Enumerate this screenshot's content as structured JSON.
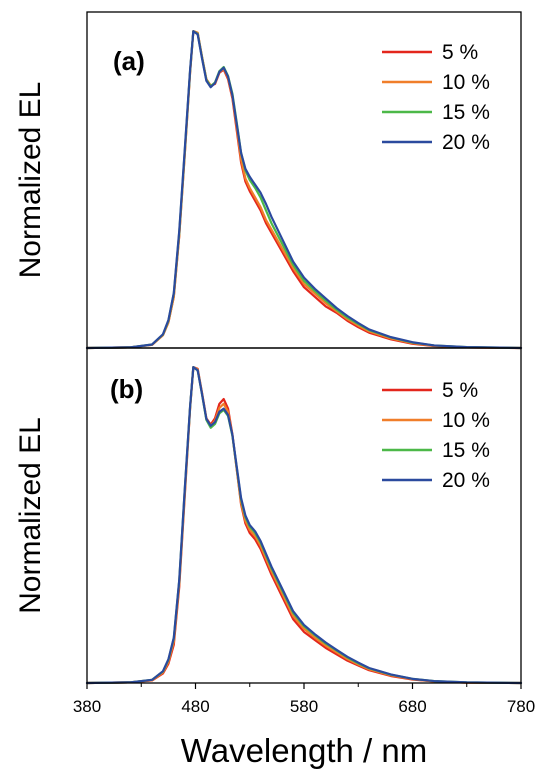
{
  "chart_data": [
    {
      "type": "line",
      "panel_label": "(a)",
      "ylabel": "Normalized EL",
      "xlabel": "",
      "xlim": [
        380,
        780
      ],
      "ylim": [
        0,
        1.05
      ],
      "y_ticks_shown": false,
      "grid": false,
      "legend_position": "top-right",
      "x": [
        380,
        420,
        440,
        450,
        455,
        460,
        465,
        470,
        475,
        478,
        482,
        486,
        490,
        494,
        498,
        502,
        506,
        510,
        514,
        518,
        522,
        526,
        530,
        535,
        540,
        545,
        550,
        560,
        570,
        580,
        590,
        600,
        610,
        620,
        630,
        640,
        660,
        680,
        700,
        730,
        780
      ],
      "series": [
        {
          "name": "5 %",
          "color": "#e3261c",
          "values": [
            0,
            0.002,
            0.01,
            0.04,
            0.08,
            0.16,
            0.35,
            0.6,
            0.86,
            0.99,
            0.985,
            0.91,
            0.84,
            0.82,
            0.825,
            0.86,
            0.87,
            0.84,
            0.78,
            0.68,
            0.58,
            0.52,
            0.49,
            0.46,
            0.43,
            0.39,
            0.36,
            0.3,
            0.24,
            0.19,
            0.16,
            0.13,
            0.11,
            0.085,
            0.065,
            0.048,
            0.027,
            0.013,
            0.006,
            0.002,
            0
          ]
        },
        {
          "name": "10 %",
          "color": "#f07e2a",
          "values": [
            0,
            0.002,
            0.01,
            0.04,
            0.08,
            0.16,
            0.35,
            0.6,
            0.86,
            0.99,
            0.985,
            0.91,
            0.84,
            0.82,
            0.827,
            0.862,
            0.873,
            0.845,
            0.785,
            0.69,
            0.59,
            0.53,
            0.5,
            0.47,
            0.44,
            0.4,
            0.37,
            0.31,
            0.25,
            0.2,
            0.17,
            0.14,
            0.115,
            0.09,
            0.07,
            0.052,
            0.03,
            0.015,
            0.007,
            0.002,
            0
          ]
        },
        {
          "name": "15 %",
          "color": "#4cb848",
          "values": [
            0,
            0.002,
            0.011,
            0.042,
            0.085,
            0.17,
            0.36,
            0.61,
            0.865,
            0.99,
            0.982,
            0.908,
            0.838,
            0.818,
            0.83,
            0.865,
            0.878,
            0.85,
            0.795,
            0.705,
            0.61,
            0.555,
            0.525,
            0.5,
            0.47,
            0.43,
            0.39,
            0.325,
            0.26,
            0.21,
            0.178,
            0.148,
            0.12,
            0.095,
            0.075,
            0.056,
            0.033,
            0.017,
            0.008,
            0.003,
            0
          ]
        },
        {
          "name": "20 %",
          "color": "#2b4a9e",
          "values": [
            0,
            0.002,
            0.011,
            0.043,
            0.087,
            0.172,
            0.365,
            0.615,
            0.868,
            0.99,
            0.98,
            0.905,
            0.835,
            0.815,
            0.828,
            0.863,
            0.876,
            0.848,
            0.79,
            0.7,
            0.61,
            0.56,
            0.535,
            0.51,
            0.485,
            0.45,
            0.41,
            0.34,
            0.27,
            0.22,
            0.185,
            0.155,
            0.125,
            0.1,
            0.078,
            0.058,
            0.034,
            0.018,
            0.008,
            0.003,
            0
          ]
        }
      ]
    },
    {
      "type": "line",
      "panel_label": "(b)",
      "ylabel": "Normalized EL",
      "xlabel": "Wavelength / nm",
      "xlim": [
        380,
        780
      ],
      "ylim": [
        0,
        1.05
      ],
      "x_ticks": [
        380,
        480,
        580,
        680,
        780
      ],
      "y_ticks_shown": false,
      "grid": false,
      "legend_position": "top-right",
      "x": [
        380,
        420,
        440,
        450,
        455,
        460,
        465,
        470,
        475,
        478,
        482,
        486,
        490,
        494,
        498,
        502,
        506,
        510,
        514,
        518,
        522,
        526,
        530,
        535,
        540,
        545,
        550,
        560,
        570,
        580,
        590,
        600,
        610,
        620,
        630,
        640,
        660,
        680,
        700,
        730,
        780
      ],
      "series": [
        {
          "name": "5 %",
          "color": "#e3261c",
          "values": [
            0,
            0.002,
            0.008,
            0.03,
            0.06,
            0.12,
            0.3,
            0.58,
            0.86,
            0.99,
            0.985,
            0.91,
            0.83,
            0.81,
            0.83,
            0.875,
            0.89,
            0.86,
            0.78,
            0.67,
            0.56,
            0.5,
            0.47,
            0.45,
            0.42,
            0.38,
            0.34,
            0.27,
            0.2,
            0.16,
            0.135,
            0.11,
            0.09,
            0.07,
            0.055,
            0.04,
            0.022,
            0.011,
            0.005,
            0.001,
            0
          ]
        },
        {
          "name": "10 %",
          "color": "#f07e2a",
          "values": [
            0,
            0.002,
            0.009,
            0.033,
            0.066,
            0.13,
            0.31,
            0.59,
            0.86,
            0.99,
            0.983,
            0.908,
            0.828,
            0.806,
            0.822,
            0.862,
            0.875,
            0.85,
            0.777,
            0.67,
            0.565,
            0.508,
            0.48,
            0.46,
            0.43,
            0.39,
            0.35,
            0.28,
            0.21,
            0.17,
            0.142,
            0.117,
            0.096,
            0.075,
            0.058,
            0.043,
            0.024,
            0.012,
            0.005,
            0.001,
            0
          ]
        },
        {
          "name": "15 %",
          "color": "#4cb848",
          "values": [
            0,
            0.002,
            0.01,
            0.036,
            0.072,
            0.14,
            0.32,
            0.6,
            0.865,
            0.99,
            0.98,
            0.905,
            0.825,
            0.8,
            0.812,
            0.845,
            0.856,
            0.837,
            0.775,
            0.675,
            0.575,
            0.52,
            0.49,
            0.47,
            0.44,
            0.4,
            0.36,
            0.29,
            0.22,
            0.178,
            0.15,
            0.124,
            0.102,
            0.08,
            0.062,
            0.046,
            0.026,
            0.013,
            0.006,
            0.002,
            0
          ]
        },
        {
          "name": "20 %",
          "color": "#2b4a9e",
          "values": [
            0,
            0.002,
            0.01,
            0.037,
            0.074,
            0.142,
            0.322,
            0.602,
            0.866,
            0.99,
            0.98,
            0.906,
            0.828,
            0.806,
            0.818,
            0.85,
            0.86,
            0.84,
            0.778,
            0.678,
            0.58,
            0.525,
            0.495,
            0.475,
            0.445,
            0.405,
            0.365,
            0.295,
            0.225,
            0.182,
            0.153,
            0.127,
            0.104,
            0.082,
            0.064,
            0.047,
            0.027,
            0.013,
            0.006,
            0.002,
            0
          ]
        }
      ]
    }
  ]
}
